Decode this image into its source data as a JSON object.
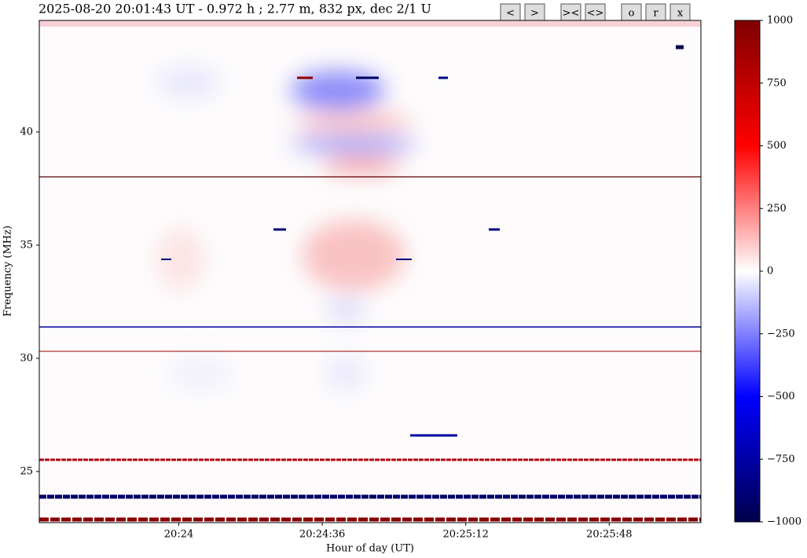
{
  "chart_data": {
    "type": "heatmap",
    "title": "2025-08-20 20:01:43 UT - 0.972 h ;    2.77 m, 832 px, dec 2/1 U",
    "xlabel": "Hour of day (UT)",
    "ylabel": "Frequency (MHz)",
    "xlim": [
      73405,
      73571
    ],
    "xticks": [
      {
        "value": 73440,
        "label": "20:24"
      },
      {
        "value": 73476,
        "label": "20:24:36"
      },
      {
        "value": 73512,
        "label": "20:25:12"
      },
      {
        "value": 73548,
        "label": "20:25:48"
      }
    ],
    "ylim": [
      22.74,
      44.93
    ],
    "yticks": [
      25,
      30,
      35,
      40
    ],
    "colorbar": {
      "lim": [
        -1000,
        1000
      ],
      "ticks": [
        {
          "value": -1000,
          "label": "−1000"
        },
        {
          "value": -750,
          "label": "−750"
        },
        {
          "value": -500,
          "label": "−500"
        },
        {
          "value": -250,
          "label": "−250"
        },
        0,
        250,
        500,
        750,
        1000
      ],
      "colormap": [
        "#00004c",
        "#0000ff",
        "#ffffff",
        "#ff0000",
        "#7f0000"
      ]
    }
  },
  "buttons": [
    "<",
    ">",
    "><",
    "<>",
    "o",
    "r",
    "x"
  ]
}
